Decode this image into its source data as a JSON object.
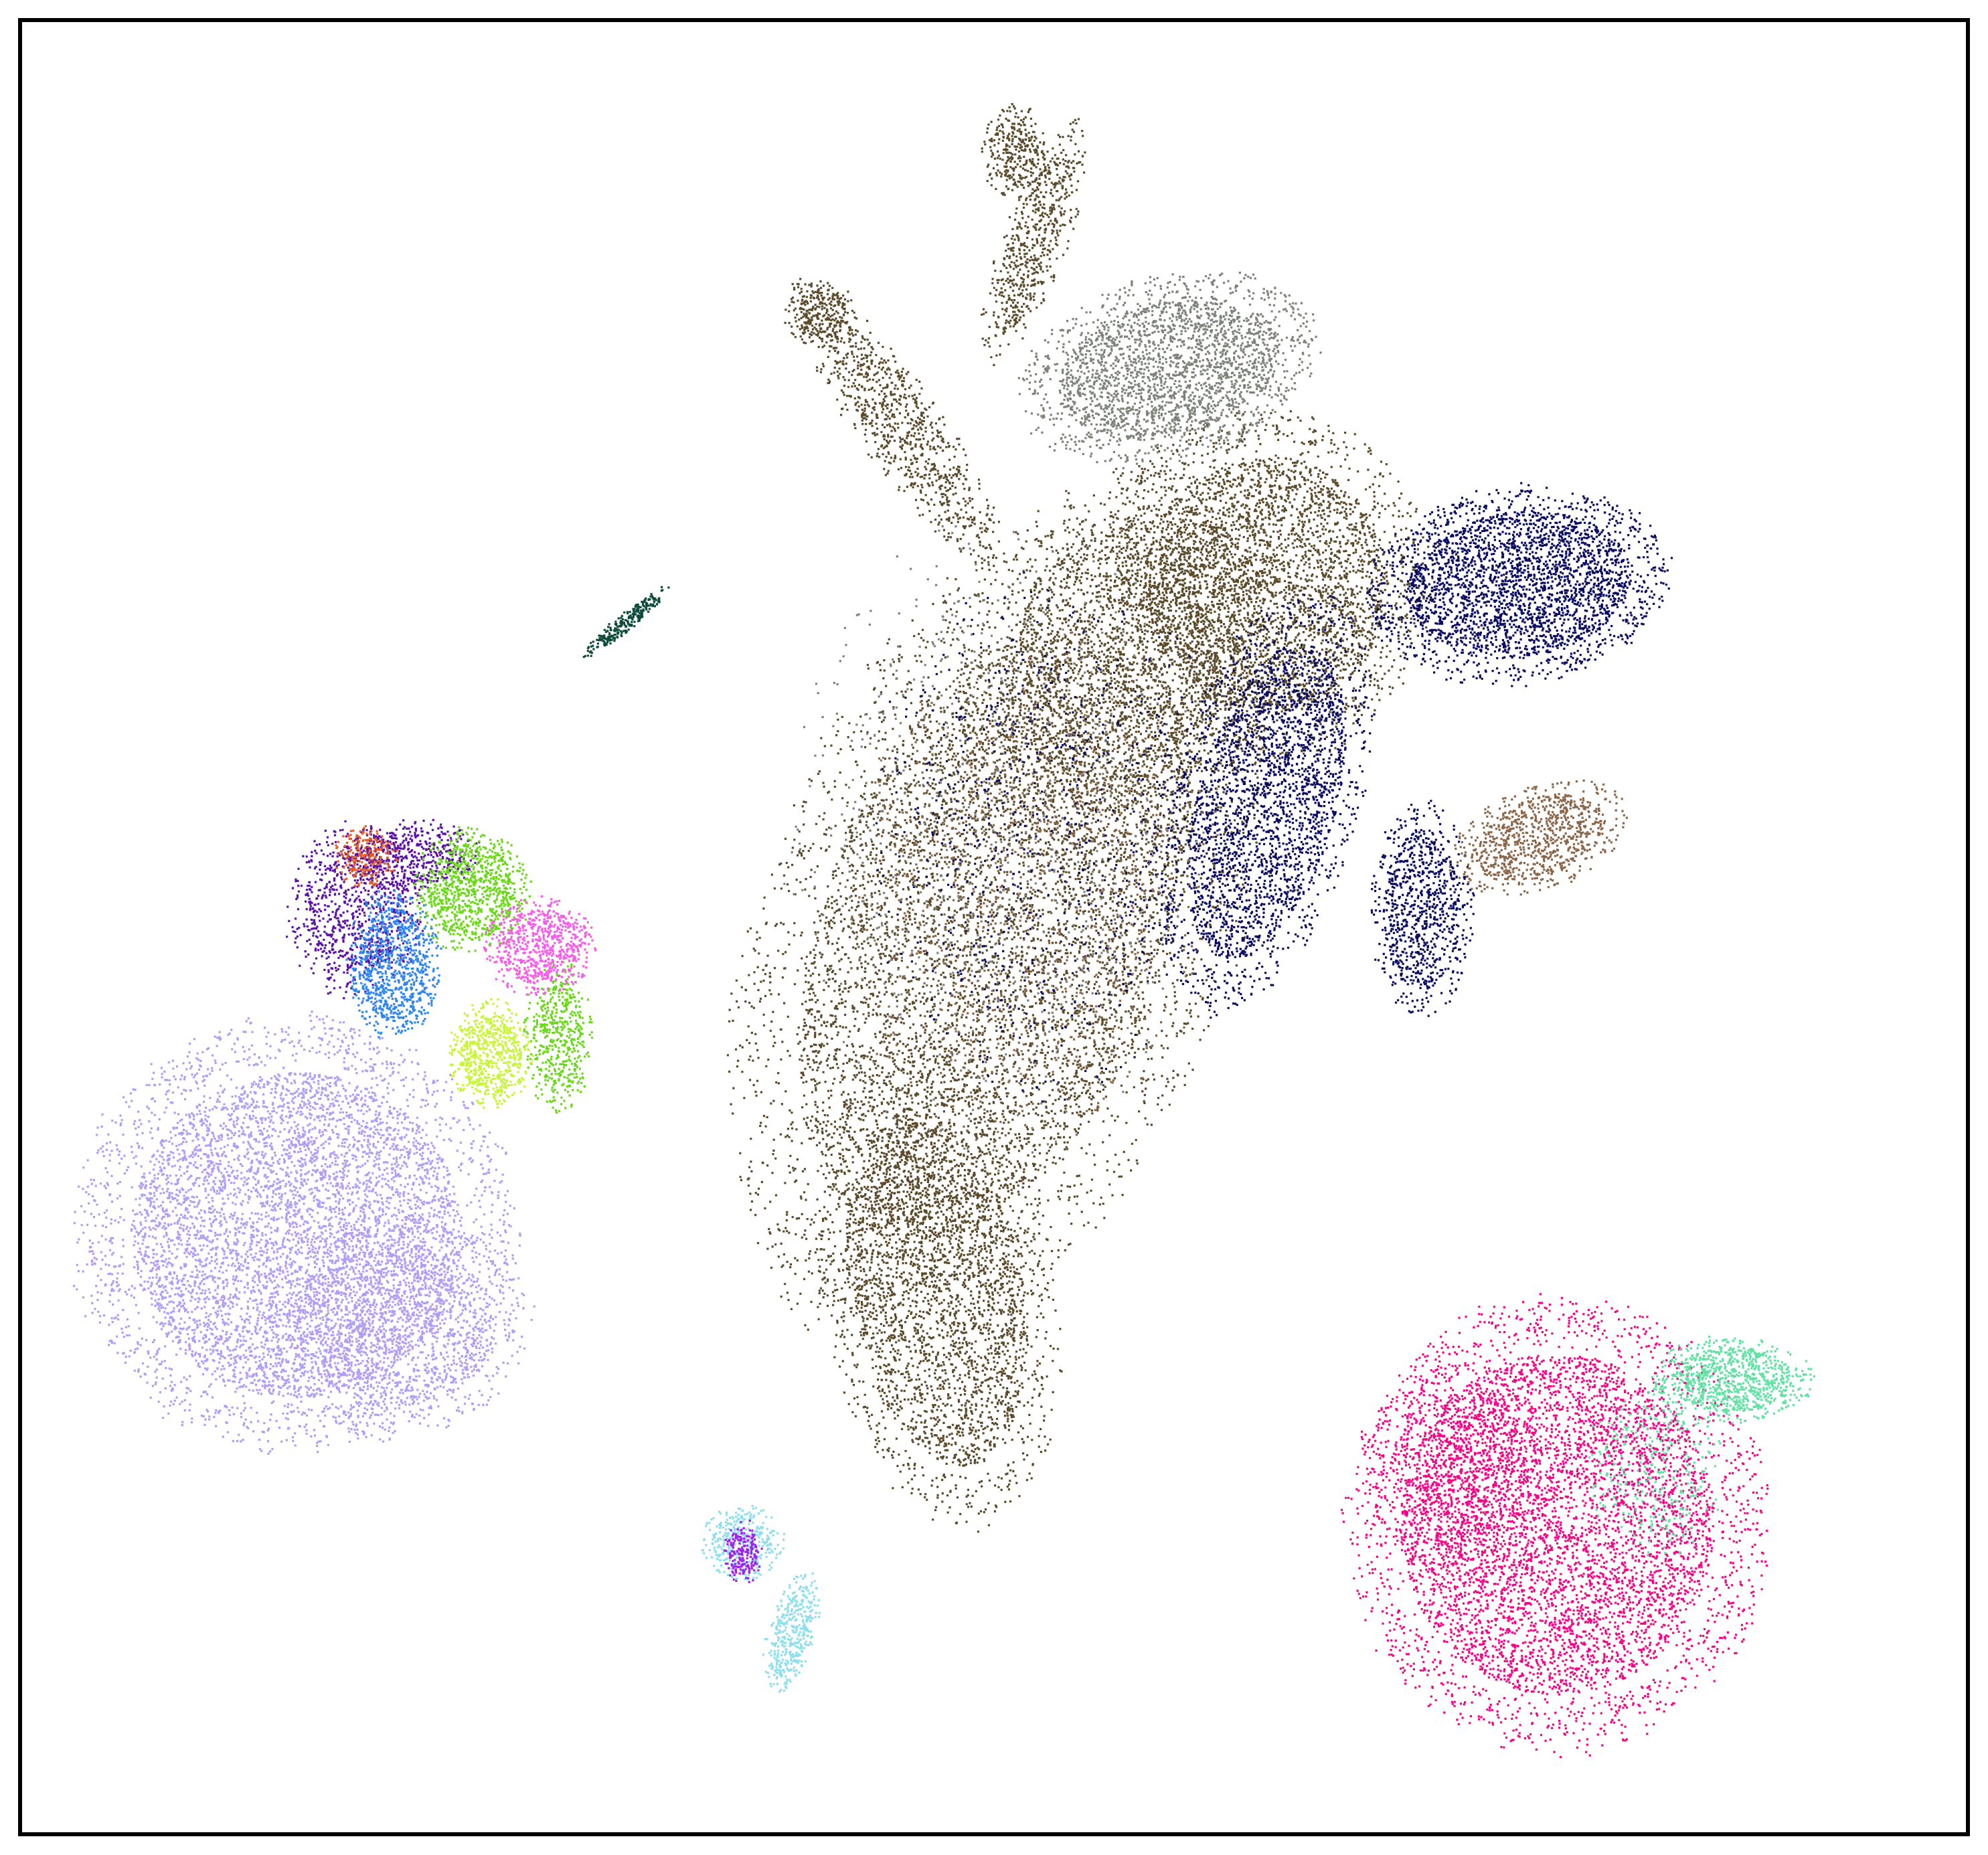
{
  "chart_data": {
    "type": "scatter",
    "title": "",
    "xlabel": "",
    "ylabel": "",
    "xlim": [
      0,
      100
    ],
    "ylim": [
      0,
      100
    ],
    "grid": false,
    "legend": "none",
    "series": [
      {
        "key": "olive",
        "color": "#5a4a29",
        "blobs": [
          {
            "x": 47,
            "y": 30,
            "rx": 5,
            "ry": 11,
            "rot": -10,
            "n": 3000
          },
          {
            "x": 50,
            "y": 50,
            "rx": 10,
            "ry": 20,
            "rot": 20,
            "n": 7000
          },
          {
            "x": 64,
            "y": 69,
            "rx": 7,
            "ry": 8,
            "rot": 0,
            "n": 3500
          },
          {
            "x": 57,
            "y": 65,
            "rx": 7,
            "ry": 10,
            "rot": 30,
            "n": 2500
          },
          {
            "x": 45,
            "y": 78,
            "rx": 1.8,
            "ry": 8,
            "rot": -35,
            "n": 900
          },
          {
            "x": 52,
            "y": 88,
            "rx": 1.4,
            "ry": 6,
            "rot": 20,
            "n": 600
          },
          {
            "x": 51,
            "y": 93,
            "rx": 1.4,
            "ry": 2.2,
            "rot": 0,
            "n": 300
          },
          {
            "x": 41,
            "y": 84,
            "rx": 1.6,
            "ry": 1.6,
            "rot": 0,
            "n": 250
          }
        ]
      },
      {
        "key": "navy",
        "color": "#0a0a60",
        "blobs": [
          {
            "x": 77,
            "y": 69,
            "rx": 6.5,
            "ry": 4.5,
            "rot": -8,
            "n": 3000
          },
          {
            "x": 64,
            "y": 57,
            "rx": 4,
            "ry": 10,
            "rot": 15,
            "n": 2800
          },
          {
            "x": 72,
            "y": 51,
            "rx": 2.2,
            "ry": 5,
            "rot": 0,
            "n": 900
          },
          {
            "x": 53,
            "y": 55,
            "rx": 8,
            "ry": 12,
            "rot": 0,
            "n": 900
          }
        ]
      },
      {
        "key": "gray",
        "color": "#7e827a",
        "blobs": [
          {
            "x": 59,
            "y": 81,
            "rx": 6.5,
            "ry": 4.2,
            "rot": -15,
            "n": 2500
          },
          {
            "x": 50,
            "y": 55,
            "rx": 9,
            "ry": 15,
            "rot": 0,
            "n": 800
          }
        ]
      },
      {
        "key": "brown",
        "color": "#8b6548",
        "blobs": [
          {
            "x": 78,
            "y": 55,
            "rx": 4,
            "ry": 2.4,
            "rot": -20,
            "n": 900
          },
          {
            "x": 52,
            "y": 52,
            "rx": 8,
            "ry": 12,
            "rot": 10,
            "n": 1200
          }
        ]
      },
      {
        "key": "lavender",
        "color": "#b19cf7",
        "blobs": [
          {
            "x": 14,
            "y": 33,
            "rx": 9.5,
            "ry": 10,
            "rot": 0,
            "n": 6500
          },
          {
            "x": 19,
            "y": 28,
            "rx": 6,
            "ry": 5,
            "rot": 0,
            "n": 1500
          }
        ]
      },
      {
        "key": "purple",
        "color": "#5b10a8",
        "blobs": [
          {
            "x": 17,
            "y": 51,
            "rx": 3,
            "ry": 4,
            "rot": 0,
            "n": 900
          },
          {
            "x": 20,
            "y": 54,
            "rx": 3,
            "ry": 1.8,
            "rot": 0,
            "n": 500
          }
        ]
      },
      {
        "key": "blue",
        "color": "#2d86f2",
        "blobs": [
          {
            "x": 19,
            "y": 48,
            "rx": 2,
            "ry": 3.5,
            "rot": 0,
            "n": 900
          }
        ]
      },
      {
        "key": "green",
        "color": "#69d915",
        "blobs": [
          {
            "x": 23,
            "y": 52,
            "rx": 2.5,
            "ry": 3,
            "rot": 0,
            "n": 900
          },
          {
            "x": 27.5,
            "y": 44,
            "rx": 1.5,
            "ry": 3.5,
            "rot": 0,
            "n": 500
          }
        ]
      },
      {
        "key": "lime",
        "color": "#c8f536",
        "blobs": [
          {
            "x": 24,
            "y": 43,
            "rx": 1.8,
            "ry": 2.5,
            "rot": 0,
            "n": 650
          }
        ]
      },
      {
        "key": "magenta",
        "color": "#f65ce8",
        "blobs": [
          {
            "x": 26.5,
            "y": 49,
            "rx": 2.4,
            "ry": 2.3,
            "rot": 0,
            "n": 700
          }
        ]
      },
      {
        "key": "orange",
        "color": "#e35e22",
        "blobs": [
          {
            "x": 17.5,
            "y": 54,
            "rx": 1.4,
            "ry": 1.4,
            "rot": 0,
            "n": 220
          }
        ]
      },
      {
        "key": "darkgreen",
        "color": "#0f4a3a",
        "blobs": [
          {
            "x": 31,
            "y": 67,
            "rx": 0.4,
            "ry": 2.5,
            "rot": 50,
            "n": 260
          }
        ]
      },
      {
        "key": "skyblue",
        "color": "#8ddfee",
        "blobs": [
          {
            "x": 37,
            "y": 16,
            "rx": 1.8,
            "ry": 1.8,
            "rot": 0,
            "n": 350
          },
          {
            "x": 39.5,
            "y": 11,
            "rx": 1,
            "ry": 3,
            "rot": 15,
            "n": 400
          }
        ]
      },
      {
        "key": "violet",
        "color": "#a020f0",
        "blobs": [
          {
            "x": 37,
            "y": 15.5,
            "rx": 0.8,
            "ry": 1.5,
            "rot": 0,
            "n": 200
          }
        ]
      },
      {
        "key": "pink",
        "color": "#f50585",
        "blobs": [
          {
            "x": 79,
            "y": 17,
            "rx": 9,
            "ry": 10.5,
            "rot": 0,
            "n": 6000
          },
          {
            "x": 74,
            "y": 20,
            "rx": 4,
            "ry": 5,
            "rot": 0,
            "n": 800
          }
        ]
      },
      {
        "key": "mint",
        "color": "#5fe2a2",
        "blobs": [
          {
            "x": 88,
            "y": 25,
            "rx": 3.5,
            "ry": 2,
            "rot": 0,
            "n": 900
          },
          {
            "x": 84,
            "y": 20,
            "rx": 3,
            "ry": 4,
            "rot": 0,
            "n": 300
          }
        ]
      }
    ]
  }
}
